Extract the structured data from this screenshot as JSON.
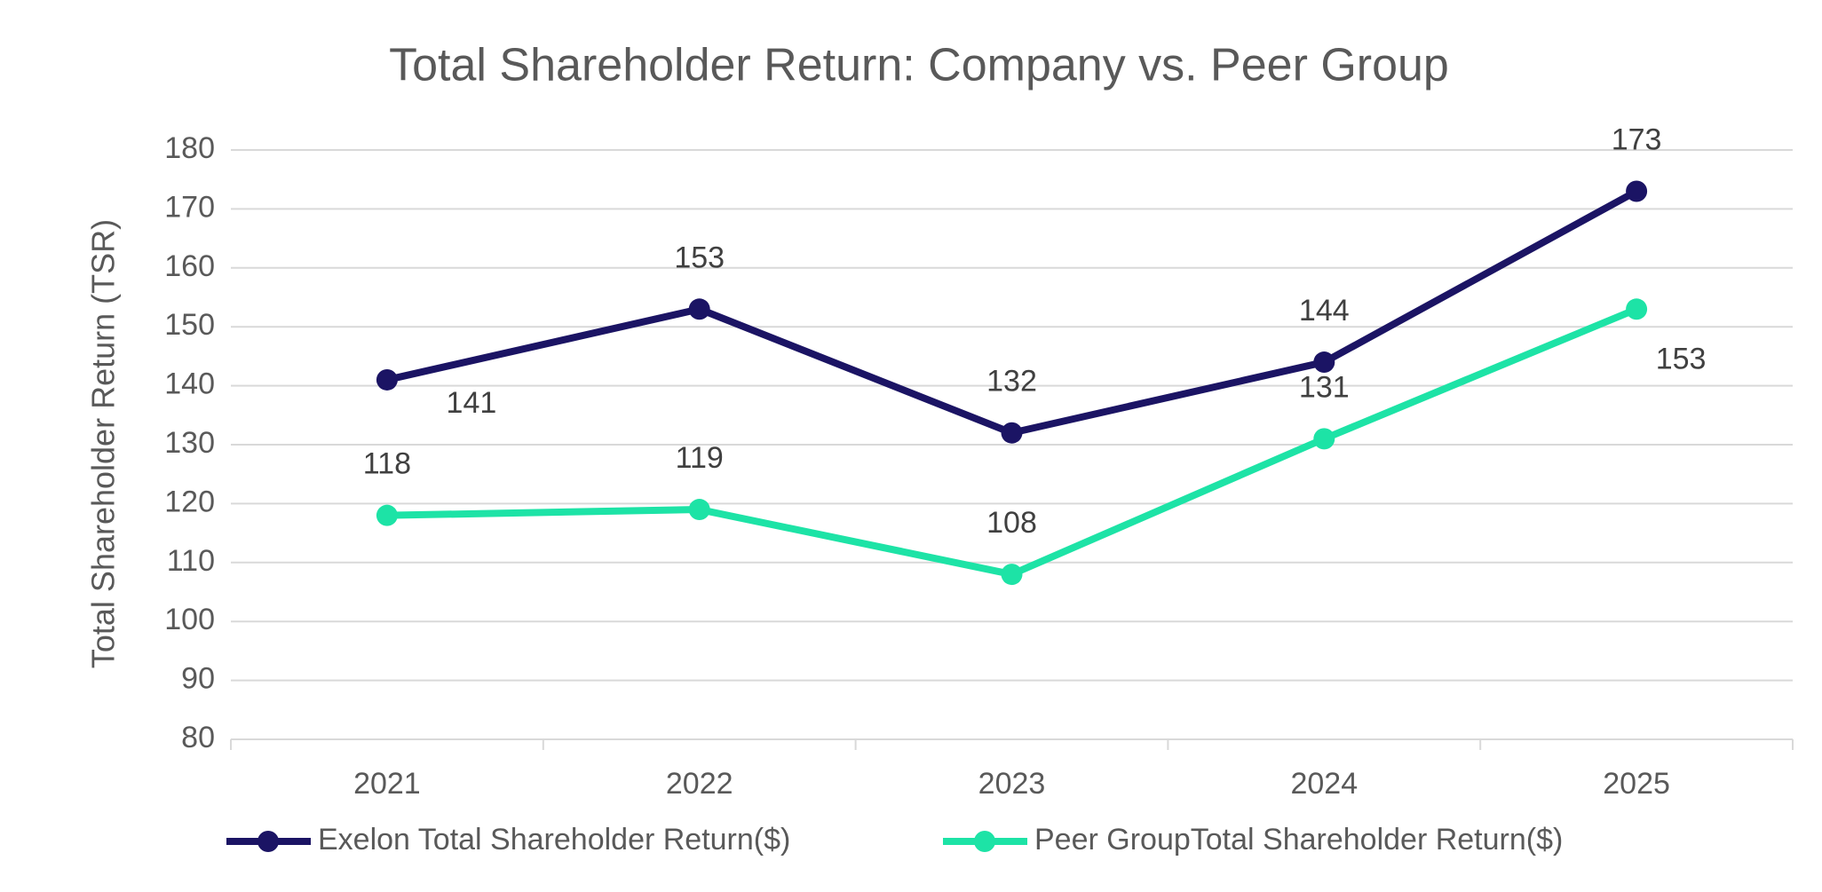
{
  "chart_data": {
    "type": "line",
    "title": "Total Shareholder Return: Company vs. Peer Group",
    "y_label": "Total Shareholder Return (TSR)",
    "categories": [
      "2021",
      "2022",
      "2023",
      "2024",
      "2025"
    ],
    "series": [
      {
        "name": "Exelon Total Shareholder Return($)",
        "color": "#1b1464",
        "values": [
          141,
          153,
          132,
          144,
          173
        ]
      },
      {
        "name": "Peer GroupTotal Shareholder Return($)",
        "color": "#1de3a6",
        "values": [
          118,
          119,
          108,
          131,
          153
        ]
      }
    ],
    "ylim": [
      80,
      180
    ],
    "yticks": [
      80,
      90,
      100,
      110,
      120,
      130,
      140,
      150,
      160,
      170,
      180
    ],
    "grid": true,
    "legend": "bottom",
    "data_labels": true
  }
}
